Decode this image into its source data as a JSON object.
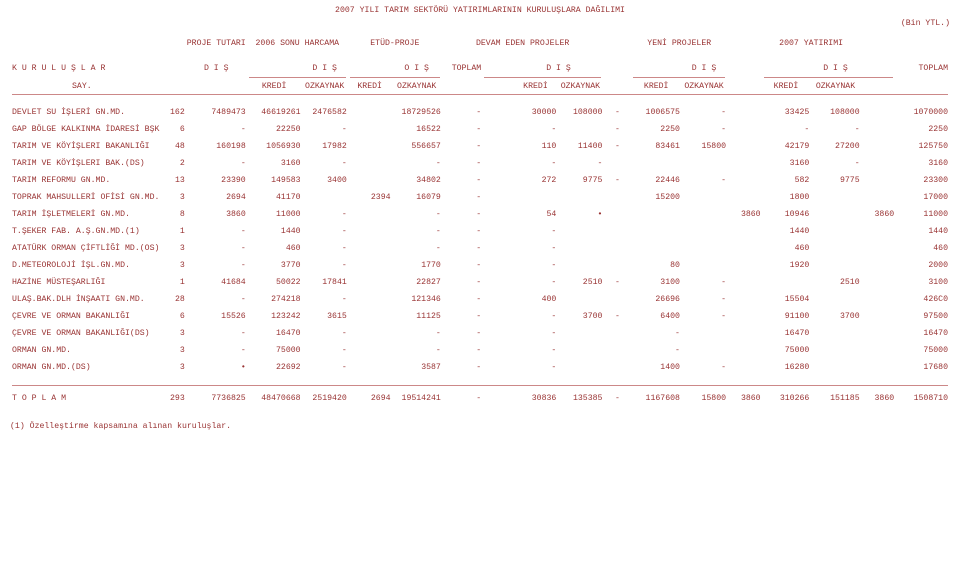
{
  "title": "2007 YILI TARIM SEKTÖRÜ YATIRIMLARININ KURULUŞLARA DAĞILIMI",
  "unit": "(Bin YTL.)",
  "headers": {
    "group_labels": [
      "PROJE TUTARI",
      "2006 SONU HARCAMA",
      "ETÜD-PROJE",
      "DEVAM EDEN PROJELER",
      "YENİ PROJELER",
      "2007 YATIRIMI"
    ],
    "kurulus": "K U R U L U Ş L A R",
    "say": "SAY.",
    "dis": "D I Ş",
    "ois": "O I Ş",
    "toplam": "TOPLAM",
    "kredi": "KREDİ",
    "ozkaynak": "OZKAYNAK"
  },
  "rows": [
    {
      "label": "DEVLET SU İŞLERİ GN.MD.",
      "say": "162",
      "c": [
        "7489473",
        "46619261",
        "2476582",
        "",
        "18729526",
        "-",
        "",
        "30000",
        "108000",
        "-",
        "1006575",
        "-",
        "",
        "33425",
        "108000",
        "",
        "1070000"
      ]
    },
    {
      "label": "GAP BÖLGE KALKINMA İDARESİ BŞK",
      "say": "6",
      "c": [
        "-",
        "22250",
        "-",
        "",
        "16522",
        "-",
        "",
        "-",
        "",
        "-",
        "2250",
        "-",
        "",
        "-",
        "-",
        "",
        "2250"
      ]
    },
    {
      "label": "TARIM VE KÖYİŞLERI BAKANLIĞI",
      "say": "48",
      "c": [
        "160198",
        "1056930",
        "17982",
        "",
        "556657",
        "-",
        "",
        "110",
        "11400",
        "-",
        "83461",
        "15800",
        "",
        "42179",
        "27200",
        "",
        "125750"
      ]
    },
    {
      "label": "TARIM VE KÖYİŞLERI BAK.(DS)",
      "say": "2",
      "c": [
        "-",
        "3160",
        "-",
        "",
        "-",
        "-",
        "",
        "-",
        "-",
        "",
        "",
        "",
        "",
        "3160",
        "-",
        "",
        "3160"
      ]
    },
    {
      "label": "TARIM REFORMU GN.MD.",
      "say": "13",
      "c": [
        "23390",
        "149583",
        "3400",
        "",
        "34802",
        "-",
        "",
        "272",
        "9775",
        "-",
        "22446",
        "-",
        "",
        "582",
        "9775",
        "",
        "23300"
      ]
    },
    {
      "label": "TOPRAK MAHSULLERİ OFİSİ GN.MD.",
      "say": "3",
      "c": [
        "2694",
        "41170",
        "",
        "2394",
        "16079",
        "-",
        "",
        "",
        "",
        "",
        "15200",
        "",
        "",
        "1800",
        "",
        "",
        "17000"
      ]
    },
    {
      "label": "TARIM İŞLETMELERİ GN.MD.",
      "say": "8",
      "c": [
        "3860",
        "11000",
        "-",
        "",
        "-",
        "-",
        "",
        "54",
        "•",
        "",
        "",
        "",
        "3860",
        "10946",
        "",
        "3860",
        "11000"
      ]
    },
    {
      "label": "T.ŞEKER FAB. A.Ş.GN.MD.(1)",
      "say": "1",
      "c": [
        "-",
        "1440",
        "-",
        "",
        "-",
        "-",
        "",
        "-",
        "",
        "",
        "",
        "",
        "",
        "1440",
        "",
        "",
        "1440"
      ]
    },
    {
      "label": "ATATÜRK ORMAN ÇİFTLİĞİ MD.(OS)",
      "say": "3",
      "c": [
        "-",
        "460",
        "-",
        "",
        "-",
        "-",
        "",
        "-",
        "",
        "",
        "",
        "",
        "",
        "460",
        "",
        "",
        "460"
      ]
    },
    {
      "label": "D.METEOROLOJİ İŞL.GN.MD.",
      "say": "3",
      "c": [
        "-",
        "3770",
        "-",
        "",
        "1770",
        "-",
        "",
        "-",
        "",
        "",
        "80",
        "",
        "",
        "1920",
        "",
        "",
        "2000"
      ]
    },
    {
      "label": "HAZİNE MÜSTEŞARLIĞI",
      "say": "1",
      "c": [
        "41684",
        "50022",
        "17841",
        "",
        "22827",
        "-",
        "",
        "-",
        "2510",
        "-",
        "3100",
        "-",
        "",
        "",
        "2510",
        "",
        "3100"
      ]
    },
    {
      "label": "ULAŞ.BAK.DLH İNŞAATI GN.MD.",
      "say": "28",
      "c": [
        "-",
        "274218",
        "-",
        "",
        "121346",
        "-",
        "",
        "400",
        "",
        "",
        "26696",
        "-",
        "",
        "15504",
        "",
        "",
        "426C0"
      ]
    },
    {
      "label": "ÇEVRE VE ORMAN BAKANLIĞI",
      "say": "6",
      "c": [
        "15526",
        "123242",
        "3615",
        "",
        "11125",
        "-",
        "",
        "-",
        "3700",
        "-",
        "6400",
        "-",
        "",
        "91100",
        "3700",
        "",
        "97500"
      ]
    },
    {
      "label": "ÇEVRE VE ORMAN BAKANLIĞI(DS)",
      "say": "3",
      "c": [
        "-",
        "16470",
        "-",
        "",
        "-",
        "-",
        "",
        "-",
        "",
        "",
        "-",
        "",
        "",
        "16470",
        "",
        "",
        "16470"
      ]
    },
    {
      "label": "ORMAN GN.MD.",
      "say": "3",
      "c": [
        "-",
        "75000",
        "-",
        "",
        "-",
        "-",
        "",
        "-",
        "",
        "",
        "-",
        "",
        "",
        "75000",
        "",
        "",
        "75000"
      ]
    },
    {
      "label": "ORMAN GN.MD.(DS)",
      "say": "3",
      "c": [
        "•",
        "22692",
        "-",
        "",
        "3587",
        "-",
        "",
        "-",
        "",
        "",
        "1400",
        "-",
        "",
        "16280",
        "",
        "",
        "17680"
      ]
    }
  ],
  "total": {
    "label": "T O P L A M",
    "say": "293",
    "c": [
      "7736825",
      "48470668",
      "2519420",
      "2694",
      "19514241",
      "-",
      "",
      "30836",
      "135385",
      "-",
      "1167608",
      "15800",
      "3860",
      "310266",
      "151185",
      "3860",
      "1508710"
    ]
  },
  "footnote": "(1) Özelleştirme kapsamına alınan kuruluşlar."
}
